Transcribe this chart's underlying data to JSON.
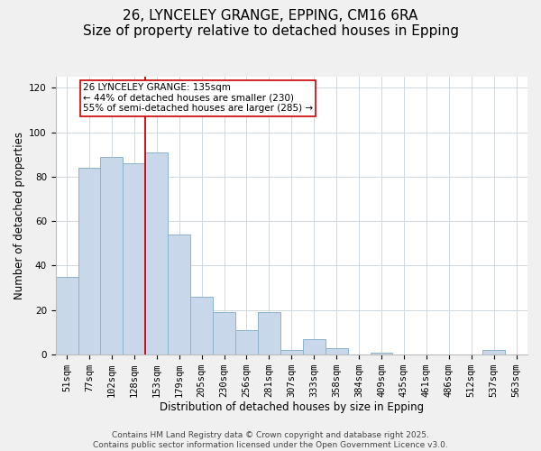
{
  "title": "26, LYNCELEY GRANGE, EPPING, CM16 6RA",
  "subtitle": "Size of property relative to detached houses in Epping",
  "xlabel": "Distribution of detached houses by size in Epping",
  "ylabel": "Number of detached properties",
  "categories": [
    "51sqm",
    "77sqm",
    "102sqm",
    "128sqm",
    "153sqm",
    "179sqm",
    "205sqm",
    "230sqm",
    "256sqm",
    "281sqm",
    "307sqm",
    "333sqm",
    "358sqm",
    "384sqm",
    "409sqm",
    "435sqm",
    "461sqm",
    "486sqm",
    "512sqm",
    "537sqm",
    "563sqm"
  ],
  "values": [
    35,
    84,
    89,
    86,
    91,
    54,
    26,
    19,
    11,
    19,
    2,
    7,
    3,
    0,
    1,
    0,
    0,
    0,
    0,
    2,
    0
  ],
  "bar_color": "#c8d8ea",
  "bar_edge_color": "#8ab4cc",
  "vline_x_index": 3,
  "vline_color": "#cc0000",
  "annotation_title": "26 LYNCELEY GRANGE: 135sqm",
  "annotation_line2": "← 44% of detached houses are smaller (230)",
  "annotation_line3": "55% of semi-detached houses are larger (285) →",
  "ylim": [
    0,
    125
  ],
  "yticks": [
    0,
    20,
    40,
    60,
    80,
    100,
    120
  ],
  "footer1": "Contains HM Land Registry data © Crown copyright and database right 2025.",
  "footer2": "Contains public sector information licensed under the Open Government Licence v3.0.",
  "background_color": "#f0f0f0",
  "plot_bg_color": "#ffffff",
  "grid_color": "#d0d8e0",
  "title_fontsize": 11,
  "subtitle_fontsize": 9.5,
  "axis_label_fontsize": 8.5,
  "tick_fontsize": 7.5,
  "annotation_fontsize": 7.5,
  "footer_fontsize": 6.5
}
